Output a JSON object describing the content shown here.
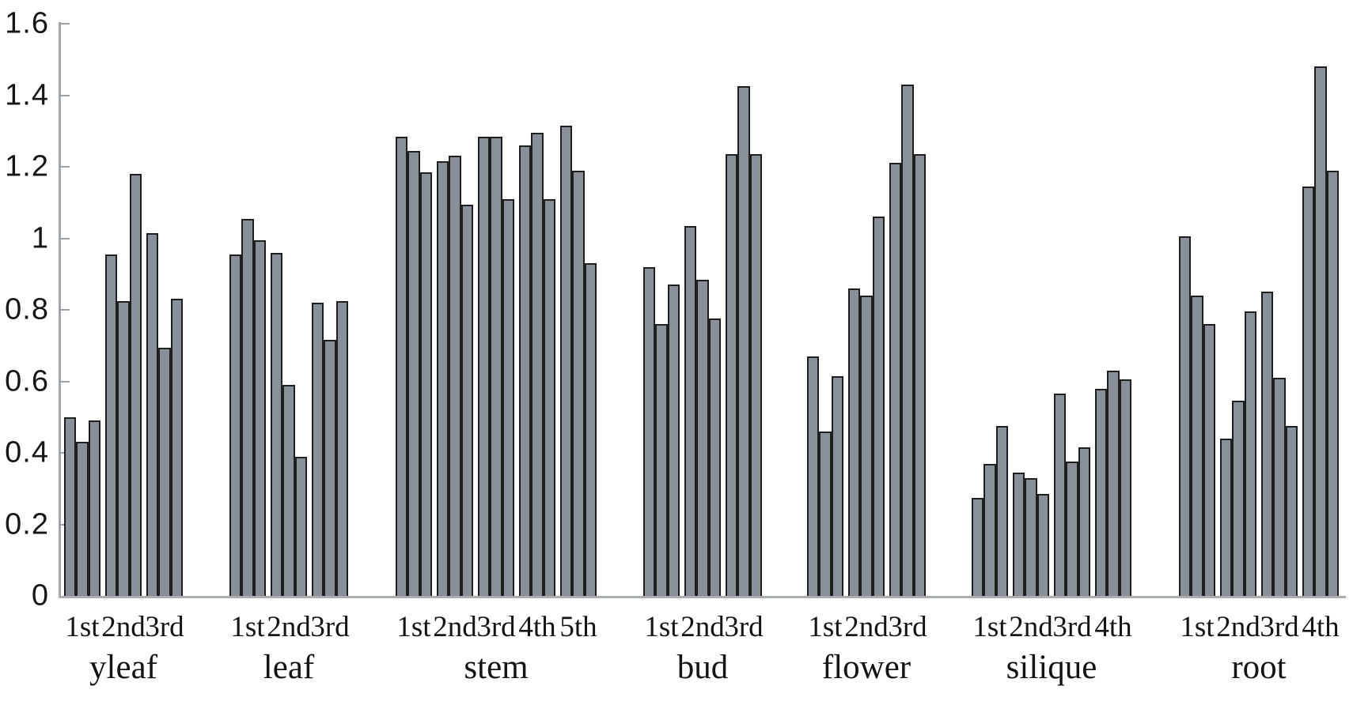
{
  "chart_data": {
    "type": "bar",
    "title": "",
    "xlabel": "",
    "ylabel": "",
    "ylim": [
      0,
      1.6
    ],
    "grid": false,
    "legend": "none",
    "bars_per_subgroup": 3,
    "yticks": [
      {
        "label": "1.6",
        "value": 1.6
      },
      {
        "label": "1.4",
        "value": 1.4
      },
      {
        "label": "1.2",
        "value": 1.2
      },
      {
        "label": "1",
        "value": 1.0
      },
      {
        "label": "0.8",
        "value": 0.8
      },
      {
        "label": "0.6",
        "value": 0.6
      },
      {
        "label": "0.4",
        "value": 0.4
      },
      {
        "label": "0.2",
        "value": 0.2
      },
      {
        "label": "0",
        "value": 0.0
      }
    ],
    "groups": [
      {
        "label": "yleaf",
        "subgroups": [
          {
            "label": "1st",
            "values": [
              0.5,
              0.43,
              0.49
            ]
          },
          {
            "label": "2nd",
            "values": [
              0.955,
              0.825,
              1.18
            ]
          },
          {
            "label": "3rd",
            "values": [
              1.015,
              0.695,
              0.83
            ]
          }
        ]
      },
      {
        "label": "leaf",
        "subgroups": [
          {
            "label": "1st",
            "values": [
              0.955,
              1.055,
              0.995
            ]
          },
          {
            "label": "2nd",
            "values": [
              0.96,
              0.59,
              0.39
            ]
          },
          {
            "label": "3rd",
            "values": [
              0.82,
              0.715,
              0.825
            ]
          }
        ]
      },
      {
        "label": "stem",
        "subgroups": [
          {
            "label": "1st",
            "values": [
              1.285,
              1.245,
              1.185
            ]
          },
          {
            "label": "2nd",
            "values": [
              1.215,
              1.23,
              1.095
            ]
          },
          {
            "label": "3rd",
            "values": [
              1.285,
              1.285,
              1.11
            ]
          },
          {
            "label": "4th",
            "values": [
              1.26,
              1.295,
              1.11
            ]
          },
          {
            "label": "5th",
            "values": [
              1.315,
              1.19,
              0.93
            ]
          }
        ]
      },
      {
        "label": "bud",
        "subgroups": [
          {
            "label": "1st",
            "values": [
              0.92,
              0.76,
              0.87
            ]
          },
          {
            "label": "2nd",
            "values": [
              1.035,
              0.885,
              0.775
            ]
          },
          {
            "label": "3rd",
            "values": [
              1.235,
              1.425,
              1.235
            ]
          }
        ]
      },
      {
        "label": "flower",
        "subgroups": [
          {
            "label": "1st",
            "values": [
              0.67,
              0.46,
              0.615
            ]
          },
          {
            "label": "2nd",
            "values": [
              0.86,
              0.84,
              1.06
            ]
          },
          {
            "label": "3rd",
            "values": [
              1.21,
              1.43,
              1.235
            ]
          }
        ]
      },
      {
        "label": "silique",
        "subgroups": [
          {
            "label": "1st",
            "values": [
              0.275,
              0.37,
              0.475
            ]
          },
          {
            "label": "2nd",
            "values": [
              0.345,
              0.33,
              0.285
            ]
          },
          {
            "label": "3rd",
            "values": [
              0.565,
              0.375,
              0.415
            ]
          },
          {
            "label": "4th",
            "values": [
              0.58,
              0.63,
              0.605
            ]
          }
        ]
      },
      {
        "label": "root",
        "subgroups": [
          {
            "label": "1st",
            "values": [
              1.005,
              0.84,
              0.76
            ]
          },
          {
            "label": "2nd",
            "values": [
              0.44,
              0.545,
              0.795
            ]
          },
          {
            "label": "3rd",
            "values": [
              0.85,
              0.61,
              0.475
            ]
          },
          {
            "label": "4th",
            "values": [
              1.145,
              1.48,
              1.19
            ]
          }
        ]
      }
    ],
    "colors": {
      "bar_fill": "#8a9099",
      "bar_border": "#1f1f1d",
      "axis_line": "#a2a6aa",
      "text": "#141412"
    }
  }
}
